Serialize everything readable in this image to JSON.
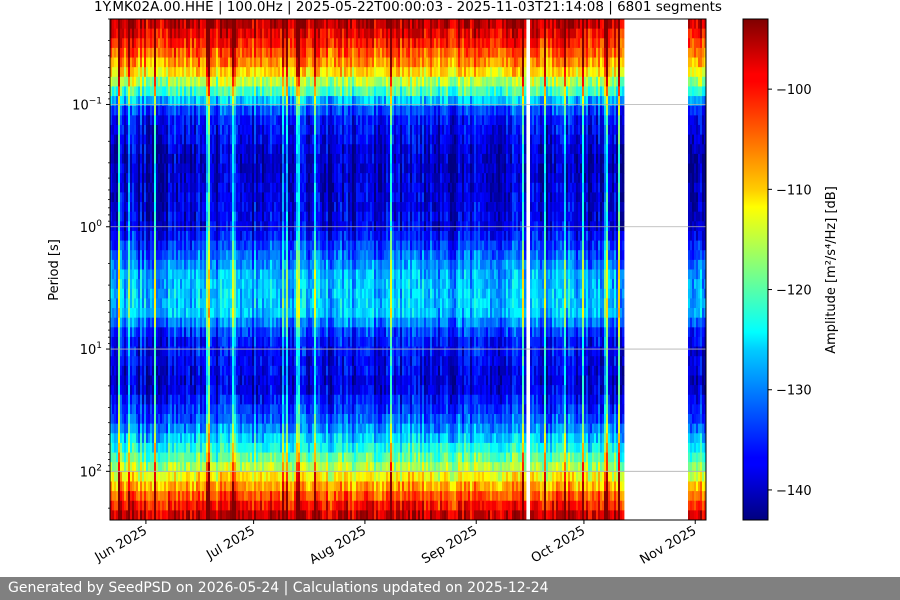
{
  "chart_data": {
    "type": "heatmap",
    "title": "1Y.MK02A.00.HHE | 100.0Hz | 2025-05-22T00:00:03 - 2025-11-03T21:14:08 | 6801 segments",
    "ylabel": "Period [s]",
    "y_scale": "log",
    "y_inverted": true,
    "ylim": [
      0.02,
      250
    ],
    "y_ticks": [
      {
        "value": 0.1,
        "base": "10",
        "exp": "−1"
      },
      {
        "value": 1,
        "base": "10",
        "exp": "0"
      },
      {
        "value": 10,
        "base": "10",
        "exp": "1"
      },
      {
        "value": 100,
        "base": "10",
        "exp": "2"
      }
    ],
    "x_type": "date",
    "xlim": [
      "2025-05-22",
      "2025-11-04"
    ],
    "x_ticks": [
      {
        "date": "2025-06-01",
        "label": "Jun 2025"
      },
      {
        "date": "2025-07-01",
        "label": "Jul 2025"
      },
      {
        "date": "2025-08-01",
        "label": "Aug 2025"
      },
      {
        "date": "2025-09-01",
        "label": "Sep 2025"
      },
      {
        "date": "2025-10-01",
        "label": "Oct 2025"
      },
      {
        "date": "2025-11-01",
        "label": "Nov 2025"
      }
    ],
    "data_gaps": [
      [
        "2025-09-15",
        "2025-09-16"
      ],
      [
        "2025-10-12",
        "2025-10-30"
      ]
    ],
    "grid": "horizontal",
    "colorbar": {
      "label": "Amplitude [m²/s⁴/Hz] [dB]",
      "range": [
        -143,
        -93
      ],
      "ticks": [
        -100,
        -110,
        -120,
        -130,
        -140
      ],
      "tick_labels": [
        "−100",
        "−110",
        "−120",
        "−130",
        "−140"
      ],
      "colormap": "jet"
    },
    "spectrum_profile_db": [
      {
        "period": 0.02,
        "db": -95
      },
      {
        "period": 0.03,
        "db": -100
      },
      {
        "period": 0.05,
        "db": -108
      },
      {
        "period": 0.08,
        "db": -122
      },
      {
        "period": 0.12,
        "db": -136
      },
      {
        "period": 0.3,
        "db": -140
      },
      {
        "period": 1,
        "db": -138
      },
      {
        "period": 2.5,
        "db": -128
      },
      {
        "period": 5,
        "db": -127
      },
      {
        "period": 8,
        "db": -136
      },
      {
        "period": 20,
        "db": -139
      },
      {
        "period": 40,
        "db": -132
      },
      {
        "period": 70,
        "db": -122
      },
      {
        "period": 110,
        "db": -112
      },
      {
        "period": 170,
        "db": -102
      },
      {
        "period": 250,
        "db": -95
      }
    ]
  },
  "footer": {
    "text": "Generated by SeedPSD on 2026-05-24 | Calculations updated on 2025-12-24"
  }
}
